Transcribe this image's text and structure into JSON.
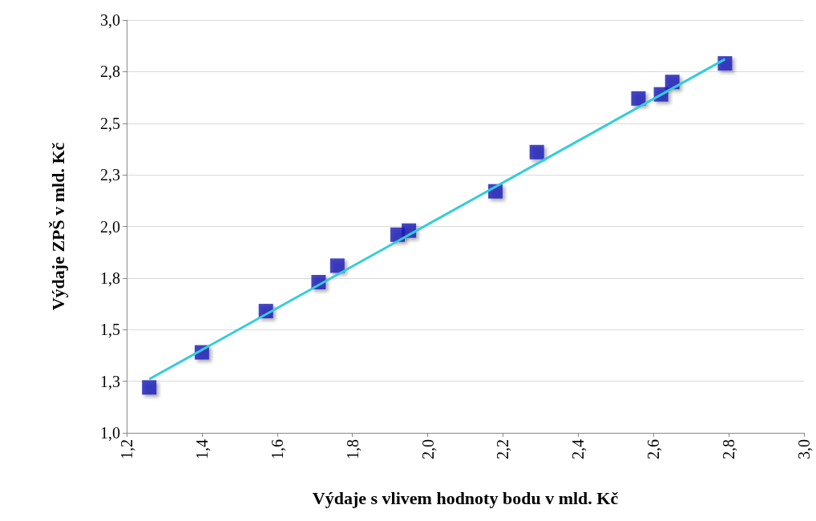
{
  "chart_data": {
    "type": "scatter",
    "xlabel": "Výdaje s vlivem hodnoty bodu v mld. Kč",
    "ylabel": "Výdaje ZPŠ v mld. Kč",
    "xlim": [
      1.2,
      3.0
    ],
    "xticks": [
      {
        "value": 1.2,
        "label": "1,2"
      },
      {
        "value": 1.4,
        "label": "1,4"
      },
      {
        "value": 1.6,
        "label": "1,6"
      },
      {
        "value": 1.8,
        "label": "1,8"
      },
      {
        "value": 2.0,
        "label": "2,0"
      },
      {
        "value": 2.2,
        "label": "2,2"
      },
      {
        "value": 2.4,
        "label": "2,4"
      },
      {
        "value": 2.6,
        "label": "2,6"
      },
      {
        "value": 2.8,
        "label": "2,8"
      },
      {
        "value": 3.0,
        "label": "3,0"
      }
    ],
    "ylim": [
      1.0,
      3.0
    ],
    "yticks": [
      {
        "value": 1.0,
        "label": "1,0"
      },
      {
        "value": 1.25,
        "label": "1,3"
      },
      {
        "value": 1.5,
        "label": "1,5"
      },
      {
        "value": 1.75,
        "label": "1,8"
      },
      {
        "value": 2.0,
        "label": "2,0"
      },
      {
        "value": 2.25,
        "label": "2,3"
      },
      {
        "value": 2.5,
        "label": "2,5"
      },
      {
        "value": 2.75,
        "label": "2,8"
      },
      {
        "value": 3.0,
        "label": "3,0"
      }
    ],
    "grid": "y",
    "marker": "square",
    "series": [
      {
        "color": "#1a1ab8",
        "x": [
          1.26,
          1.4,
          1.57,
          1.71,
          1.76,
          1.92,
          1.95,
          2.18,
          2.29,
          2.56,
          2.62,
          2.65,
          2.79
        ],
        "values": [
          1.22,
          1.39,
          1.59,
          1.73,
          1.81,
          1.96,
          1.98,
          2.17,
          2.36,
          2.62,
          2.64,
          2.7,
          2.79
        ]
      },
      {
        "type": "line",
        "color": "#33ccdd",
        "marker": "none",
        "line_style": "solid",
        "x": [
          1.26,
          2.79
        ],
        "values": [
          1.26,
          2.81
        ]
      }
    ]
  }
}
